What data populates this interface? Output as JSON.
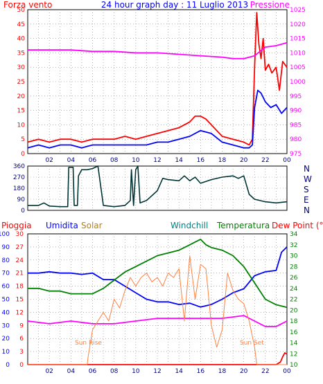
{
  "chart_data": [
    {
      "id": "wind-pressure",
      "type": "line",
      "title": "24 hour graph day : 11 Luglio 2013",
      "left_axis_title": "Forza vento",
      "right_axis_title": "Pressione",
      "x_ticks": [
        "02",
        "04",
        "06",
        "08",
        "10",
        "12",
        "14",
        "16",
        "18",
        "20",
        "22",
        "00"
      ],
      "left_ticks": [
        "0",
        "5",
        "10",
        "15",
        "20",
        "25",
        "30",
        "35",
        "40",
        "45",
        "50"
      ],
      "right_ticks": [
        "975",
        "980",
        "985",
        "990",
        "995",
        "1000",
        "1005",
        "1010",
        "1015",
        "1020",
        "1025"
      ],
      "ylim_left": [
        0,
        50
      ],
      "ylim_right": [
        975,
        1025
      ],
      "xlim_hours": [
        0,
        24
      ],
      "grid": true,
      "series": [
        {
          "key": "gust",
          "color": "#ff0000",
          "axis": "left",
          "x": [
            0,
            1,
            2,
            3,
            4,
            5,
            6,
            7,
            8,
            9,
            10,
            11,
            12,
            13,
            14,
            15,
            15.5,
            16,
            16.5,
            17,
            18,
            19,
            20,
            20.5,
            20.8,
            21,
            21.2,
            21.4,
            21.6,
            21.8,
            22,
            22.3,
            22.6,
            23,
            23.3,
            23.6,
            24
          ],
          "y": [
            4,
            5,
            4,
            5,
            5,
            4,
            5,
            5,
            5,
            6,
            5,
            6,
            7,
            8,
            9,
            11,
            13,
            13,
            12,
            10,
            6,
            5,
            4,
            3,
            5,
            30,
            49,
            38,
            33,
            40,
            29,
            31,
            28,
            30,
            22,
            32,
            30
          ]
        },
        {
          "key": "wind",
          "color": "#0000ff",
          "axis": "left",
          "x": [
            0,
            1,
            2,
            3,
            4,
            5,
            6,
            7,
            8,
            9,
            10,
            11,
            12,
            13,
            14,
            15,
            16,
            17,
            18,
            19,
            20,
            20.5,
            20.8,
            21,
            21.3,
            21.6,
            22,
            22.5,
            23,
            23.5,
            24
          ],
          "y": [
            2,
            3,
            2,
            3,
            3,
            2,
            3,
            3,
            3,
            3,
            3,
            3,
            4,
            4,
            5,
            6,
            8,
            7,
            4,
            3,
            2,
            2,
            3,
            16,
            22,
            21,
            18,
            16,
            17,
            14,
            16
          ]
        },
        {
          "key": "pressure",
          "color": "#ff00ff",
          "axis": "right",
          "x": [
            0,
            2,
            4,
            6,
            8,
            10,
            12,
            14,
            16,
            18,
            19,
            20,
            21,
            22,
            23,
            24
          ],
          "y": [
            1011,
            1011,
            1011,
            1010.5,
            1010.5,
            1010,
            1010,
            1009.5,
            1009,
            1008.5,
            1008,
            1008,
            1009,
            1012,
            1012.5,
            1013.5
          ]
        }
      ]
    },
    {
      "id": "wind-direction",
      "type": "line",
      "xlim_hours": [
        0,
        24
      ],
      "ylim": [
        0,
        360
      ],
      "left_ticks": [
        "0",
        "90",
        "180",
        "270",
        "360"
      ],
      "right_ticks": [
        "N",
        "W",
        "S",
        "E",
        "N"
      ],
      "grid": true,
      "series": [
        {
          "key": "direction",
          "color": "#003333",
          "x": [
            0,
            1,
            1.5,
            2,
            3,
            3.7,
            3.8,
            4.2,
            4.3,
            4.6,
            4.7,
            5,
            5.5,
            6,
            6.5,
            7,
            8,
            9,
            9.5,
            9.6,
            9.8,
            10,
            10.2,
            10.4,
            11,
            12,
            12.5,
            13,
            14,
            14.5,
            15,
            15.5,
            16,
            17,
            18,
            19,
            19.5,
            20,
            20.5,
            21,
            22,
            23,
            24
          ],
          "y": [
            40,
            40,
            60,
            35,
            30,
            30,
            350,
            350,
            40,
            40,
            280,
            330,
            330,
            340,
            360,
            40,
            30,
            40,
            80,
            330,
            40,
            330,
            360,
            60,
            80,
            160,
            260,
            250,
            240,
            280,
            240,
            270,
            220,
            250,
            270,
            280,
            260,
            280,
            130,
            90,
            70,
            60,
            70
          ]
        }
      ]
    },
    {
      "id": "rain-hum-temp",
      "type": "line",
      "titles": [
        "Pioggia",
        "Umidita",
        "Solar",
        "Windchill",
        "Temperatura",
        "Dew Point (°C)"
      ],
      "rain_ticks": [
        "0",
        "10",
        "20",
        "30",
        "40",
        "50",
        "60",
        "70",
        "80",
        "90",
        "100"
      ],
      "hum_ticks": [
        "0",
        "3",
        "6",
        "9",
        "12",
        "15",
        "18",
        "21",
        "24",
        "27",
        "30"
      ],
      "temp_ticks": [
        "10",
        "12",
        "14",
        "16",
        "18",
        "20",
        "22",
        "24",
        "26",
        "28",
        "30",
        "32",
        "34"
      ],
      "annotations": [
        "Sun Rise",
        "Sun Set"
      ],
      "xlim_hours": [
        0,
        24
      ],
      "grid": true,
      "series": [
        {
          "key": "rain",
          "color": "#ff0000",
          "axis": "rain",
          "x": [
            0,
            23,
            23.4,
            23.6,
            23.8,
            24
          ],
          "y": [
            0,
            0,
            2,
            6,
            9,
            8
          ]
        },
        {
          "key": "humidity",
          "color": "#0000ff",
          "axis": "rain",
          "x": [
            0,
            1,
            2,
            3,
            4,
            5,
            6,
            7,
            8,
            9,
            10,
            11,
            12,
            13,
            14,
            15,
            16,
            17,
            18,
            19,
            20,
            21,
            22,
            23,
            23.5,
            24
          ],
          "y": [
            70,
            70,
            71,
            70,
            70,
            69,
            70,
            65,
            65,
            60,
            55,
            50,
            48,
            48,
            46,
            47,
            44,
            46,
            50,
            55,
            58,
            68,
            71,
            72,
            86,
            90
          ]
        },
        {
          "key": "temperature",
          "color": "#008000",
          "axis": "temp",
          "x": [
            0,
            1,
            2,
            3,
            4,
            5,
            6,
            7,
            8,
            9,
            10,
            11,
            12,
            13,
            14,
            15,
            15.5,
            16,
            16.5,
            17,
            18,
            19,
            20,
            21,
            22,
            23,
            24
          ],
          "y": [
            24,
            24,
            23.5,
            23.5,
            23,
            23,
            23,
            24,
            25.5,
            27,
            28,
            29,
            30,
            30.5,
            31,
            32,
            32.5,
            33,
            32,
            31.5,
            31,
            30,
            28,
            25,
            22,
            21,
            20.5
          ]
        },
        {
          "key": "dewpoint",
          "color": "#ff00ff",
          "axis": "temp",
          "x": [
            0,
            2,
            4,
            6,
            8,
            10,
            12,
            14,
            16,
            18,
            20,
            21,
            22,
            23,
            23.5,
            24
          ],
          "y": [
            18,
            17.5,
            18,
            17.5,
            17.5,
            18,
            18.5,
            18.5,
            18.5,
            18.5,
            19,
            18,
            17,
            17,
            17.5,
            18
          ]
        },
        {
          "key": "solar",
          "color": "#ff8040",
          "axis": "hum",
          "x": [
            0,
            5.5,
            5.6,
            6,
            6.5,
            7,
            7.5,
            8,
            8.5,
            9,
            9.5,
            10,
            10.5,
            11,
            11.5,
            12,
            12.5,
            13,
            13.5,
            14,
            14.5,
            15,
            15.5,
            16,
            16.5,
            17,
            17.5,
            18,
            18.5,
            19,
            19.5,
            20,
            20.5,
            21,
            21.2,
            21.4,
            24
          ],
          "y": [
            0,
            0,
            2,
            8,
            10,
            12,
            10,
            15,
            13,
            17,
            20,
            18,
            20,
            21,
            19,
            20,
            18,
            21,
            20,
            22,
            10,
            25,
            15,
            23,
            22,
            9,
            4,
            8,
            21,
            17,
            15,
            14,
            10,
            4,
            0,
            0,
            0
          ]
        }
      ]
    }
  ]
}
